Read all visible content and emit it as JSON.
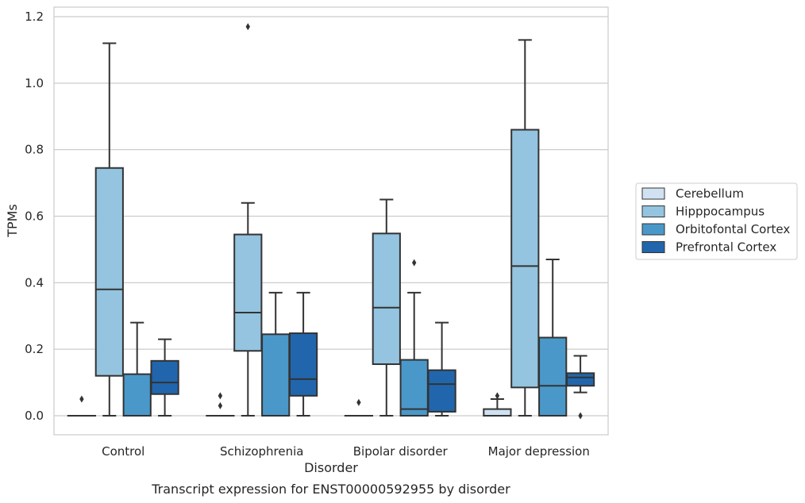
{
  "chart_data": {
    "type": "box",
    "xlabel": "Disorder",
    "ylabel": "TPMs",
    "caption": "Transcript expression for ENST00000592955 by disorder",
    "ylim": [
      -0.055,
      1.235
    ],
    "yticks": [
      "0.0",
      "0.2",
      "0.4",
      "0.6",
      "0.8",
      "1.0",
      "1.2"
    ],
    "ytick_values": [
      0.0,
      0.2,
      0.4,
      0.6,
      0.8,
      1.0,
      1.2
    ],
    "grid": "horizontal",
    "legend_position": "right",
    "categories": [
      "Control",
      "Schizophrenia",
      "Bipolar disorder",
      "Major depression"
    ],
    "series": [
      {
        "name": "Cerebellum",
        "color": "#d0e1f2",
        "boxes": [
          {
            "min": 0,
            "q1": 0,
            "median": 0,
            "q3": 0,
            "max": 0,
            "outliers": [
              0.05
            ]
          },
          {
            "min": 0,
            "q1": 0,
            "median": 0,
            "q3": 0,
            "max": 0,
            "outliers": [
              0.03,
              0.06
            ]
          },
          {
            "min": 0,
            "q1": 0,
            "median": 0,
            "q3": 0,
            "max": 0,
            "outliers": [
              0.04
            ]
          },
          {
            "min": 0,
            "q1": 0,
            "median": 0,
            "q3": 0.02,
            "max": 0.05,
            "outliers": [
              0.06
            ]
          }
        ]
      },
      {
        "name": "Hipppocampus",
        "color": "#94c4df",
        "boxes": [
          {
            "min": 0,
            "q1": 0.12,
            "median": 0.38,
            "q3": 0.745,
            "max": 1.12,
            "outliers": []
          },
          {
            "min": 0,
            "q1": 0.195,
            "median": 0.31,
            "q3": 0.545,
            "max": 0.64,
            "outliers": [
              1.17
            ]
          },
          {
            "min": 0,
            "q1": 0.155,
            "median": 0.325,
            "q3": 0.548,
            "max": 0.65,
            "outliers": []
          },
          {
            "min": 0,
            "q1": 0.085,
            "median": 0.45,
            "q3": 0.86,
            "max": 1.13,
            "outliers": []
          }
        ]
      },
      {
        "name": "Orbitofontal Cortex",
        "color": "#4a98c9",
        "boxes": [
          {
            "min": 0,
            "q1": 0,
            "median": 0,
            "q3": 0.125,
            "max": 0.28,
            "outliers": []
          },
          {
            "min": 0,
            "q1": 0,
            "median": 0,
            "q3": 0.245,
            "max": 0.37,
            "outliers": []
          },
          {
            "min": 0,
            "q1": 0,
            "median": 0.02,
            "q3": 0.168,
            "max": 0.37,
            "outliers": [
              0.46
            ]
          },
          {
            "min": 0,
            "q1": 0,
            "median": 0.09,
            "q3": 0.235,
            "max": 0.47,
            "outliers": []
          }
        ]
      },
      {
        "name": "Prefrontal Cortex",
        "color": "#2166ac",
        "boxes": [
          {
            "min": 0,
            "q1": 0.065,
            "median": 0.1,
            "q3": 0.165,
            "max": 0.23,
            "outliers": []
          },
          {
            "min": 0,
            "q1": 0.06,
            "median": 0.11,
            "q3": 0.248,
            "max": 0.37,
            "outliers": []
          },
          {
            "min": 0,
            "q1": 0.012,
            "median": 0.095,
            "q3": 0.137,
            "max": 0.28,
            "outliers": []
          },
          {
            "min": 0.07,
            "q1": 0.09,
            "median": 0.115,
            "q3": 0.128,
            "max": 0.18,
            "outliers": [
              0.0
            ]
          }
        ]
      }
    ]
  }
}
